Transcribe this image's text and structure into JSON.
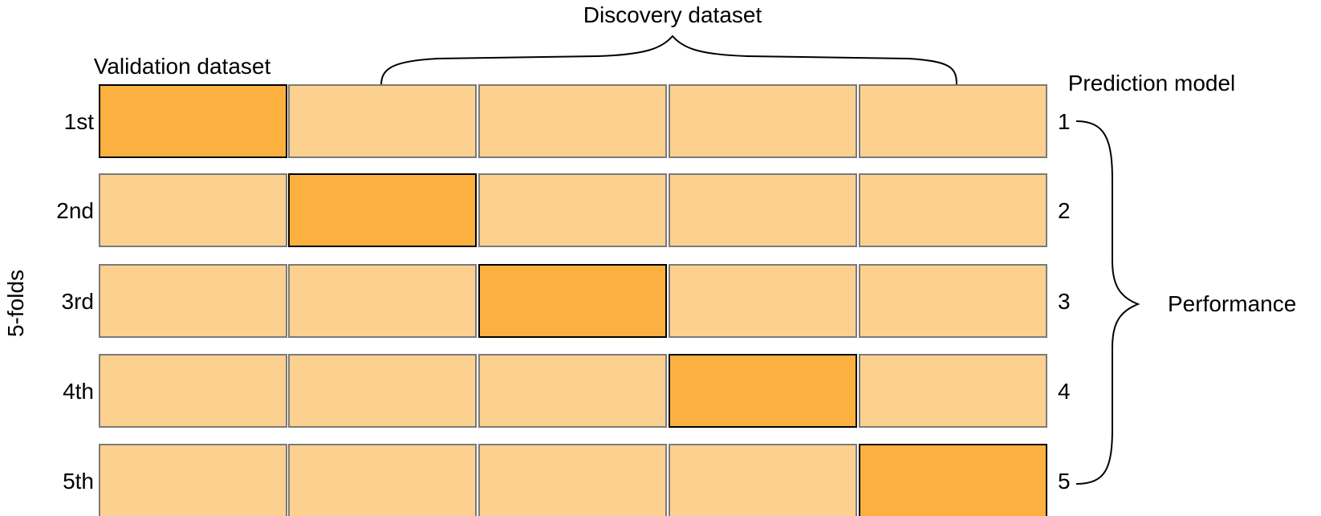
{
  "header": {
    "discovery_label": "Discovery dataset",
    "validation_label": "Validation dataset",
    "prediction_label": "Prediction model"
  },
  "side": {
    "folds_label": "5-folds",
    "performance_label": "Performance"
  },
  "folds": [
    {
      "label": "1st",
      "model": "1",
      "validation_index": 0
    },
    {
      "label": "2nd",
      "model": "2",
      "validation_index": 1
    },
    {
      "label": "3rd",
      "model": "3",
      "validation_index": 2
    },
    {
      "label": "4th",
      "model": "4",
      "validation_index": 3
    },
    {
      "label": "5th",
      "model": "5",
      "validation_index": 4
    }
  ],
  "colors": {
    "validation_fill": "#FBB040",
    "discovery_fill": "#FCD190",
    "validation_text": "#F7A837"
  }
}
